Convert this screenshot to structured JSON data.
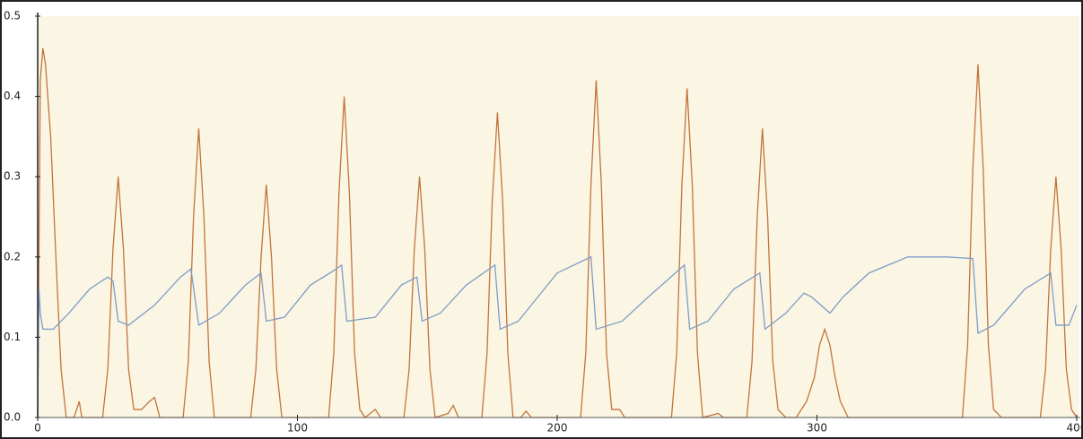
{
  "chart_data": {
    "type": "line",
    "xlim": [
      0,
      400
    ],
    "xticks": [
      0,
      100,
      200,
      300,
      400
    ],
    "ylim": [
      0,
      0.5
    ],
    "yticks": [
      {
        "value": 0,
        "label": "0.0"
      },
      0.1,
      0.2,
      0.3,
      0.4,
      0.5
    ],
    "background": "#faf6e3",
    "series": [
      {
        "color": "#c4733c",
        "x": [
          0,
          1,
          2,
          3,
          5,
          7,
          9,
          11,
          14,
          16,
          17,
          25,
          27,
          29,
          31,
          33,
          35,
          37,
          40,
          43,
          45,
          47,
          56,
          58,
          60,
          62,
          64,
          66,
          68,
          82,
          84,
          86,
          88,
          90,
          92,
          94,
          112,
          114,
          116,
          118,
          120,
          122,
          124,
          126,
          130,
          132,
          141,
          143,
          145,
          147,
          149,
          151,
          153,
          158,
          160,
          162,
          171,
          173,
          175,
          177,
          179,
          181,
          183,
          186,
          188,
          190,
          209,
          211,
          213,
          215,
          217,
          219,
          221,
          224,
          226,
          244,
          246,
          248,
          250,
          252,
          254,
          256,
          262,
          264,
          273,
          275,
          277,
          279,
          281,
          283,
          285,
          288,
          292,
          296,
          299,
          301,
          303,
          305,
          307,
          309,
          312,
          356,
          358,
          360,
          362,
          364,
          366,
          368,
          371,
          386,
          388,
          390,
          392,
          394,
          396,
          398,
          400
        ],
        "values": [
          0,
          0.42,
          0.46,
          0.44,
          0.35,
          0.2,
          0.06,
          0,
          0,
          0.02,
          0,
          0,
          0.06,
          0.21,
          0.3,
          0.21,
          0.06,
          0.01,
          0.01,
          0.02,
          0.025,
          0,
          0,
          0.07,
          0.25,
          0.36,
          0.25,
          0.07,
          0,
          0,
          0.06,
          0.2,
          0.29,
          0.2,
          0.06,
          0,
          0,
          0.08,
          0.28,
          0.4,
          0.28,
          0.08,
          0.01,
          0,
          0.01,
          0,
          0,
          0.06,
          0.21,
          0.3,
          0.21,
          0.06,
          0,
          0.005,
          0.015,
          0,
          0,
          0.08,
          0.27,
          0.38,
          0.27,
          0.08,
          0,
          0,
          0.008,
          0,
          0,
          0.08,
          0.29,
          0.42,
          0.29,
          0.08,
          0.01,
          0.01,
          0,
          0,
          0.08,
          0.29,
          0.41,
          0.29,
          0.08,
          0,
          0.005,
          0,
          0,
          0.07,
          0.25,
          0.36,
          0.25,
          0.07,
          0.01,
          0,
          0,
          0.02,
          0.05,
          0.09,
          0.11,
          0.09,
          0.05,
          0.02,
          0,
          0,
          0.09,
          0.31,
          0.44,
          0.31,
          0.09,
          0.01,
          0,
          0,
          0.06,
          0.21,
          0.3,
          0.21,
          0.06,
          0.01,
          0
        ]
      },
      {
        "color": "#7f9cc6",
        "x": [
          0,
          0.5,
          1,
          2,
          6,
          12,
          20,
          27,
          29,
          31,
          35,
          45,
          55,
          59,
          62,
          70,
          80,
          86,
          88,
          95,
          105,
          115,
          117,
          119,
          130,
          140,
          146,
          148,
          155,
          165,
          176,
          178,
          185,
          200,
          213,
          215,
          225,
          235,
          249,
          251,
          258,
          268,
          278,
          280,
          288,
          295,
          298,
          305,
          310,
          320,
          335,
          350,
          360,
          362,
          368,
          380,
          390,
          392,
          397,
          400
        ],
        "values": [
          0,
          0.16,
          0.13,
          0.11,
          0.11,
          0.13,
          0.16,
          0.175,
          0.17,
          0.12,
          0.115,
          0.14,
          0.175,
          0.185,
          0.115,
          0.13,
          0.165,
          0.18,
          0.12,
          0.125,
          0.165,
          0.185,
          0.19,
          0.12,
          0.125,
          0.165,
          0.175,
          0.12,
          0.13,
          0.165,
          0.19,
          0.11,
          0.12,
          0.18,
          0.2,
          0.11,
          0.12,
          0.15,
          0.19,
          0.11,
          0.12,
          0.16,
          0.18,
          0.11,
          0.13,
          0.155,
          0.15,
          0.13,
          0.15,
          0.18,
          0.2,
          0.2,
          0.198,
          0.105,
          0.115,
          0.16,
          0.18,
          0.115,
          0.115,
          0.14
        ]
      }
    ]
  }
}
